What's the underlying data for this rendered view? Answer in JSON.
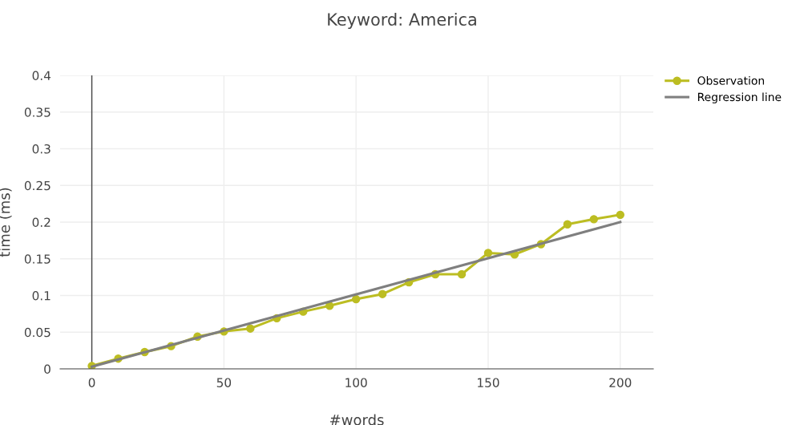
{
  "chart_data": {
    "type": "line",
    "title": "Keyword: America",
    "xlabel": "#words",
    "ylabel": "time (ms)",
    "xlim": [
      -12,
      212.5
    ],
    "xticks": [
      0,
      50,
      100,
      150,
      200
    ],
    "ylim": [
      0,
      0.4
    ],
    "yticks": [
      0,
      0.05,
      0.1,
      0.15,
      0.2,
      0.25,
      0.3,
      0.35,
      0.4
    ],
    "grid": true,
    "legend": "top right",
    "series": [
      {
        "name": "Observation",
        "color": "#bcbd22",
        "marker": "circle",
        "x": [
          0,
          10,
          20,
          30,
          40,
          50,
          60,
          70,
          80,
          90,
          100,
          110,
          120,
          130,
          140,
          150,
          160,
          170,
          180,
          190,
          200
        ],
        "values": [
          0.004,
          0.014,
          0.023,
          0.031,
          0.044,
          0.051,
          0.055,
          0.069,
          0.078,
          0.086,
          0.095,
          0.102,
          0.118,
          0.129,
          0.129,
          0.158,
          0.156,
          0.17,
          0.197,
          0.204,
          0.21
        ]
      },
      {
        "name": "Regression line",
        "color": "#7f7f7f",
        "marker": "none",
        "x": [
          0,
          200
        ],
        "values": [
          0.003,
          0.2
        ]
      }
    ]
  }
}
